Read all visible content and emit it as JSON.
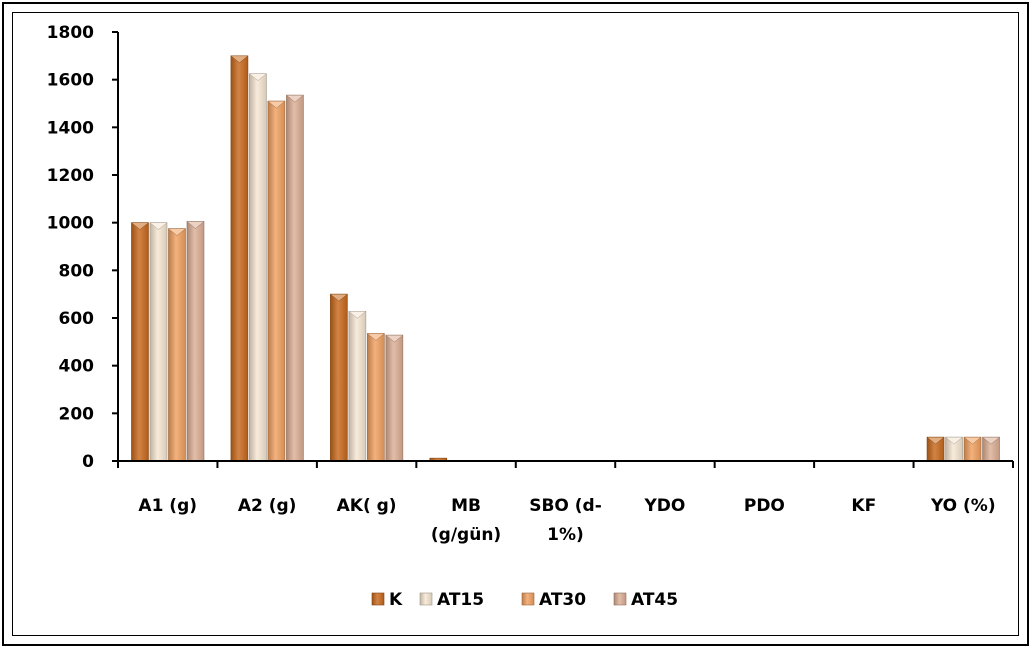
{
  "chart_data": {
    "type": "bar",
    "title": "",
    "xlabel": "",
    "ylabel": "",
    "ylim": [
      0,
      1800
    ],
    "yticks": [
      0,
      200,
      400,
      600,
      800,
      1000,
      1200,
      1400,
      1600,
      1800
    ],
    "grid": false,
    "legend_position": "bottom",
    "categories": [
      [
        "A1 (g)"
      ],
      [
        "A2 (g)"
      ],
      [
        "AK( g)"
      ],
      [
        "MB",
        "(g/gün)"
      ],
      [
        "SBO (d-",
        "1%)"
      ],
      [
        "YDO"
      ],
      [
        "PDO"
      ],
      [
        "KF"
      ],
      [
        "YO (%)"
      ]
    ],
    "series": [
      {
        "name": "K",
        "color": "#c8691c",
        "values": [
          1000,
          1700,
          700,
          12,
          0,
          0,
          0,
          0,
          100
        ]
      },
      {
        "name": "AT15",
        "color": "#f6e6d2",
        "values": [
          1000,
          1625,
          628,
          0,
          0,
          0,
          0,
          0,
          100
        ]
      },
      {
        "name": "AT30",
        "color": "#f0a060",
        "values": [
          975,
          1510,
          535,
          0,
          0,
          0,
          0,
          0,
          100
        ]
      },
      {
        "name": "AT45",
        "color": "#dcae95",
        "values": [
          1005,
          1535,
          528,
          0,
          0,
          0,
          0,
          0,
          100
        ]
      }
    ]
  }
}
